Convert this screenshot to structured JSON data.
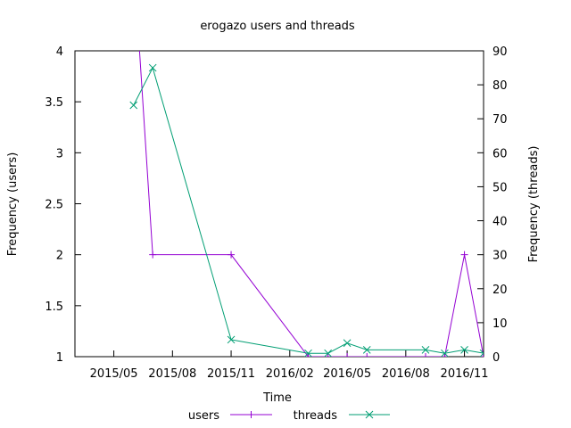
{
  "chart_data": {
    "type": "line",
    "title": "erogazo users and threads",
    "xlabel": "Time",
    "ylabel_left": "Frequency (users)",
    "ylabel_right": "Frequency (threads)",
    "x_ticks": [
      "2015/05",
      "2015/08",
      "2015/11",
      "2016/02",
      "2016/05",
      "2016/08",
      "2016/11"
    ],
    "x_tick_dates": [
      "2015-05-01",
      "2015-08-01",
      "2015-11-01",
      "2016-02-01",
      "2016-05-01",
      "2016-08-01",
      "2016-11-01"
    ],
    "x_range": [
      "2015-03-01",
      "2016-12-01"
    ],
    "y_left": {
      "ticks": [
        "1",
        "1.5",
        "2",
        "2.5",
        "3",
        "3.5",
        "4"
      ],
      "range": [
        1,
        4
      ]
    },
    "y_right": {
      "ticks": [
        "0",
        "10",
        "20",
        "30",
        "40",
        "50",
        "60",
        "70",
        "80",
        "90"
      ],
      "range": [
        0,
        90
      ]
    },
    "grid": false,
    "legend_position": "bottom",
    "series": [
      {
        "name": "users",
        "axis": "left",
        "color": "#9400d3",
        "marker": "plus",
        "points": [
          [
            "2015-06-01",
            4.9
          ],
          [
            "2015-07-01",
            2
          ],
          [
            "2015-11-01",
            2
          ],
          [
            "2016-03-01",
            1
          ],
          [
            "2016-04-01",
            1
          ],
          [
            "2016-05-01",
            1
          ],
          [
            "2016-06-01",
            1
          ],
          [
            "2016-09-01",
            1
          ],
          [
            "2016-10-01",
            1
          ],
          [
            "2016-11-01",
            2
          ],
          [
            "2016-12-01",
            1
          ]
        ]
      },
      {
        "name": "threads",
        "axis": "right",
        "color": "#009e73",
        "marker": "cross",
        "points": [
          [
            "2015-06-01",
            74
          ],
          [
            "2015-07-01",
            85
          ],
          [
            "2015-11-01",
            5
          ],
          [
            "2016-03-01",
            1
          ],
          [
            "2016-04-01",
            1
          ],
          [
            "2016-05-01",
            4
          ],
          [
            "2016-06-01",
            2
          ],
          [
            "2016-09-01",
            2
          ],
          [
            "2016-10-01",
            1
          ],
          [
            "2016-11-01",
            2
          ],
          [
            "2016-12-01",
            1
          ]
        ]
      }
    ]
  }
}
